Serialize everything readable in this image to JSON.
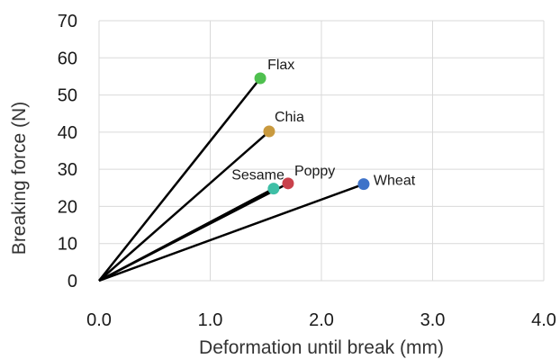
{
  "chart_data": {
    "type": "scatter",
    "xlabel": "Deformation until break (mm)",
    "ylabel": "Breaking force (N)",
    "xlim": [
      0.0,
      4.0
    ],
    "ylim": [
      0,
      70
    ],
    "x_ticks": [
      "0.0",
      "1.0",
      "2.0",
      "3.0",
      "4.0"
    ],
    "y_ticks": [
      "0",
      "10",
      "20",
      "30",
      "40",
      "50",
      "60",
      "70"
    ],
    "grid": true,
    "origin": [
      0,
      0
    ],
    "points": [
      {
        "label": "Flax",
        "x": 1.45,
        "y": 54.5,
        "color": "#4fc04f"
      },
      {
        "label": "Chia",
        "x": 1.53,
        "y": 40.2,
        "color": "#c99a3f"
      },
      {
        "label": "Sesame",
        "x": 1.57,
        "y": 24.8,
        "color": "#3fbfa6"
      },
      {
        "label": "Poppy",
        "x": 1.7,
        "y": 26.2,
        "color": "#c9414b"
      },
      {
        "label": "Wheat",
        "x": 2.38,
        "y": 26.0,
        "color": "#3f73c9"
      }
    ]
  }
}
